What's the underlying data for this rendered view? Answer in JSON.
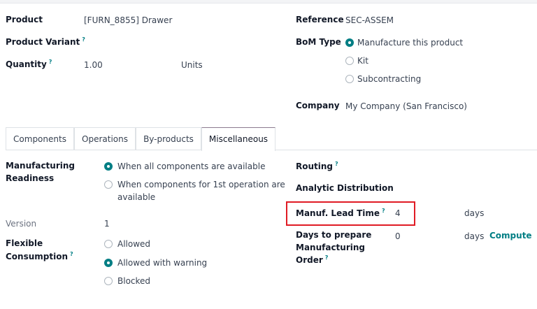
{
  "header": {
    "product_label": "Product",
    "product_value": "[FURN_8855] Drawer",
    "variant_label": "Product Variant",
    "quantity_label": "Quantity",
    "quantity_value": "1.00",
    "quantity_uom": "Units",
    "reference_label": "Reference",
    "reference_value": "SEC-ASSEM",
    "bom_type_label": "BoM Type",
    "bom_type_options": [
      {
        "label": "Manufacture this product",
        "selected": true
      },
      {
        "label": "Kit",
        "selected": false
      },
      {
        "label": "Subcontracting",
        "selected": false
      }
    ],
    "company_label": "Company",
    "company_value": "My Company (San Francisco)",
    "help_marker": "?"
  },
  "tabs": [
    {
      "label": "Components"
    },
    {
      "label": "Operations"
    },
    {
      "label": "By-products"
    },
    {
      "label": "Miscellaneous",
      "active": true
    }
  ],
  "misc": {
    "readiness_label_1": "Manufacturing",
    "readiness_label_2": "Readiness",
    "readiness_options": [
      {
        "label": "When all components are available",
        "selected": true
      },
      {
        "label_1": "When components for 1st operation are",
        "label_2": "available",
        "selected": false
      }
    ],
    "version_label": "Version",
    "version_value": "1",
    "flex_label_1": "Flexible",
    "flex_label_2": "Consumption",
    "flex_options": [
      {
        "label": "Allowed",
        "selected": false
      },
      {
        "label": "Allowed with warning",
        "selected": true
      },
      {
        "label": "Blocked",
        "selected": false
      }
    ],
    "routing_label": "Routing",
    "analytic_label": "Analytic Distribution",
    "lead_time_label": "Manuf. Lead Time",
    "lead_time_value": "4",
    "lead_time_unit": "days",
    "prepare_label_1": "Days to prepare",
    "prepare_label_2": "Manufacturing",
    "prepare_label_3": "Order",
    "prepare_value": "0",
    "prepare_unit": "days",
    "compute_label": "Compute"
  },
  "colors": {
    "accent": "#017e84",
    "highlight": "#e01b24"
  }
}
